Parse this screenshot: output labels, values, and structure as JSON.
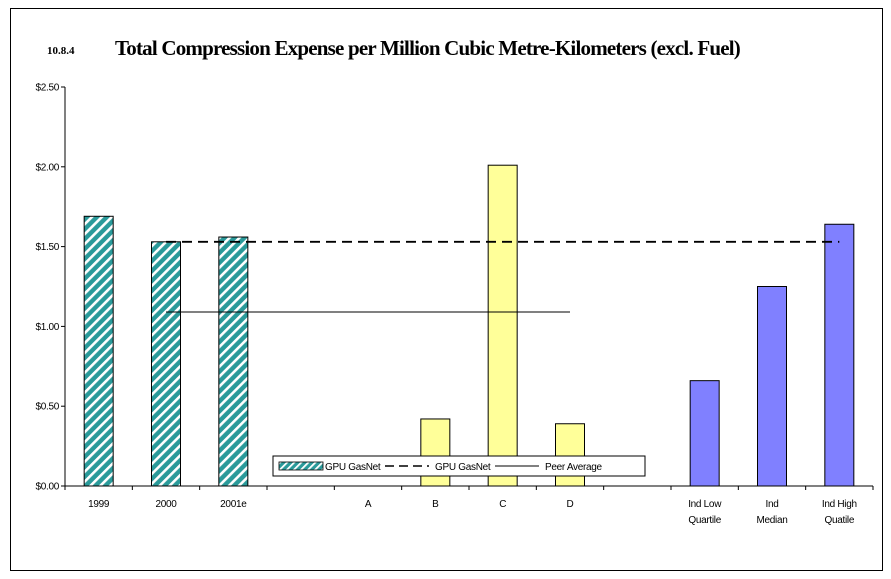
{
  "chart_data": {
    "type": "bar",
    "figure_number": "10.8.4",
    "title": "Total Compression Expense per Million Cubic Metre-Kilometers (excl. Fuel)",
    "xlabel": "",
    "ylabel": "",
    "ylim": [
      0,
      2.5
    ],
    "y_ticks": [
      0,
      0.5,
      1.0,
      1.5,
      2.0,
      2.5
    ],
    "y_tick_labels": [
      "$0.00",
      "$0.50",
      "$1.00",
      "$1.50",
      "$2.00",
      "$2.50"
    ],
    "grid": false,
    "legend_position": "bottom",
    "categories": [
      [
        "1999"
      ],
      [
        "2000"
      ],
      [
        "2001e"
      ],
      [
        ""
      ],
      [
        "A"
      ],
      [
        "B"
      ],
      [
        "C"
      ],
      [
        "D"
      ],
      [
        ""
      ],
      [
        "Ind Low",
        "Quartile"
      ],
      [
        "Ind",
        "Median"
      ],
      [
        "Ind High",
        "Quatile"
      ]
    ],
    "series": [
      {
        "name": "GPU GasNet",
        "kind": "bar",
        "style": "hatch",
        "color": "#2a9a9a",
        "values": [
          1.69,
          1.53,
          1.56,
          null,
          null,
          null,
          null,
          null,
          null,
          null,
          null,
          null
        ]
      },
      {
        "name": "",
        "kind": "bar",
        "style": "solid",
        "color": "#ffff99",
        "values": [
          null,
          null,
          null,
          null,
          null,
          0.42,
          2.01,
          0.39,
          null,
          null,
          null,
          null
        ]
      },
      {
        "name": "",
        "kind": "bar",
        "style": "solid",
        "color": "#8080ff",
        "values": [
          null,
          null,
          null,
          null,
          null,
          null,
          null,
          null,
          null,
          0.66,
          1.25,
          1.64
        ]
      },
      {
        "name": "GPU GasNet",
        "kind": "line",
        "style": "dashed",
        "color": "#000000",
        "value": 1.53,
        "from": 1,
        "to": 11
      },
      {
        "name": "Peer Average",
        "kind": "line",
        "style": "solid",
        "color": "#000000",
        "value": 1.09,
        "from": 1,
        "to": 7
      }
    ]
  }
}
